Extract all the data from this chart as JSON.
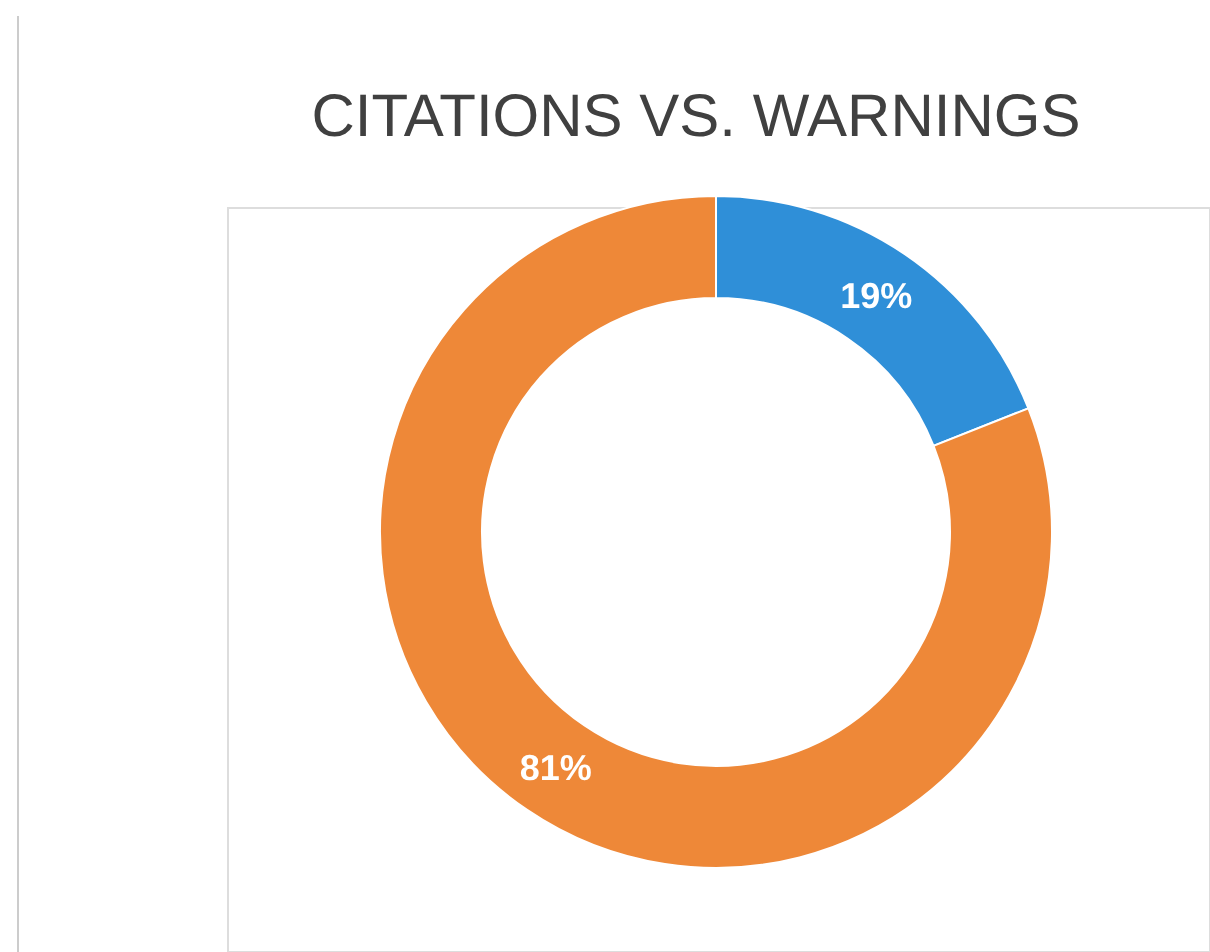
{
  "chart_data": {
    "type": "donut",
    "title": "CITATIONS VS. WARNINGS",
    "categories": [
      null,
      null
    ],
    "values": [
      19,
      81
    ],
    "colors": [
      "#2f8fd8",
      "#ee8838"
    ],
    "value_labels": [
      "19%",
      "81%"
    ]
  }
}
